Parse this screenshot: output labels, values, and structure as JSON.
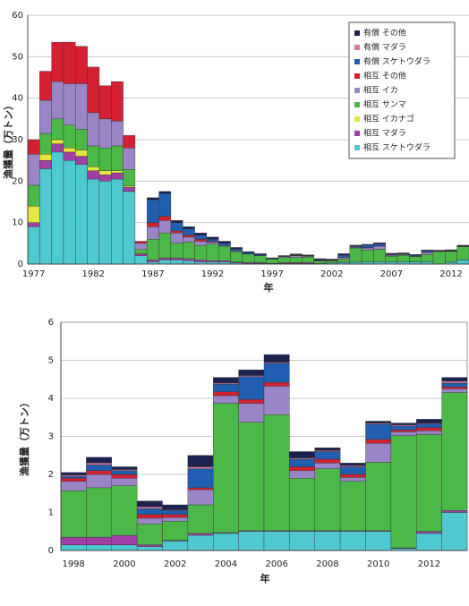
{
  "chart_data": [
    {
      "type": "stacked_bar",
      "y_label": "漁獲量（万トン）",
      "x_label": "年",
      "categories": [
        "1977",
        null,
        null,
        null,
        null,
        "1982",
        null,
        null,
        null,
        null,
        "1987",
        null,
        null,
        null,
        null,
        "1992",
        null,
        null,
        null,
        null,
        "1997",
        null,
        null,
        null,
        null,
        "2002",
        null,
        null,
        null,
        null,
        "2007",
        null,
        null,
        null,
        null,
        "2012",
        null
      ],
      "ylim": [
        0,
        60
      ],
      "yticks": [
        0,
        10,
        20,
        30,
        40,
        50,
        60
      ],
      "grid": true,
      "legend": "upper right",
      "series": [
        {
          "name": "相互 スケトウダラ",
          "color": "#4fc8d0",
          "values": [
            9,
            23,
            27,
            25,
            24,
            20.5,
            20,
            20.5,
            17.5,
            2,
            0.5,
            1,
            1,
            0.8,
            0.5,
            0.5,
            0.5,
            0.3,
            0.2,
            0.2,
            0.1,
            0.15,
            0.15,
            0.15,
            0.1,
            0.25,
            0.4,
            0.45,
            0.5,
            0.5,
            0.5,
            0.5,
            0.5,
            0.5,
            0.05,
            0.45,
            1.0
          ]
        },
        {
          "name": "相互 マダラ",
          "color": "#a23fa6",
          "values": [
            1,
            2,
            2,
            2,
            2,
            2,
            1.5,
            1.5,
            1,
            0.5,
            0.5,
            0.5,
            0.5,
            0.5,
            0.5,
            0.3,
            0.3,
            0.2,
            0.2,
            0.2,
            0.1,
            0.2,
            0.2,
            0.25,
            0.05,
            0.02,
            0.05,
            0.02,
            0.02,
            0.02,
            0.02,
            0.02,
            0.02,
            0.02,
            0.02,
            0.05,
            0.05
          ]
        },
        {
          "name": "相互 イカナゴ",
          "color": "#e6e63c",
          "values": [
            4,
            1.5,
            1,
            1,
            1.5,
            1,
            1,
            0.5,
            0.3,
            0,
            0,
            0,
            0,
            0,
            0,
            0,
            0,
            0,
            0,
            0,
            0,
            0,
            0,
            0,
            0,
            0,
            0,
            0,
            0,
            0,
            0,
            0,
            0,
            0,
            0,
            0,
            0
          ]
        },
        {
          "name": "相互 サンマ",
          "color": "#4cb848",
          "values": [
            5,
            5,
            5,
            5.5,
            5,
            5,
            5.5,
            6,
            4,
            1,
            5,
            6,
            3.5,
            4,
            3.5,
            4,
            3.5,
            2.5,
            2,
            1.6,
            1,
            1.22,
            1.3,
            1.3,
            0.55,
            0.5,
            0.75,
            3.4,
            2.85,
            3.05,
            1.38,
            1.63,
            1.3,
            1.8,
            2.95,
            2.55,
            3.1
          ]
        },
        {
          "name": "相互 イカ",
          "color": "#9a86c6",
          "values": [
            7.5,
            8,
            9,
            10,
            11,
            8,
            7,
            6,
            5.2,
            1.5,
            3,
            3,
            2.5,
            1.2,
            1,
            0.5,
            0.2,
            0.2,
            0,
            0,
            0,
            0.25,
            0.35,
            0.2,
            0.15,
            0.1,
            0.4,
            0.2,
            0.5,
            0.75,
            0.2,
            0.15,
            0.1,
            0.5,
            0.1,
            0.1,
            0.1
          ]
        },
        {
          "name": "相互 その他",
          "color": "#d42030",
          "values": [
            3.5,
            7,
            9.5,
            10,
            9,
            11,
            8,
            9.5,
            3,
            0.5,
            1,
            1,
            0.5,
            0.5,
            0.5,
            0.2,
            0,
            0,
            0,
            0,
            0,
            0.08,
            0.1,
            0.1,
            0.1,
            0.08,
            0.05,
            0.1,
            0.1,
            0.1,
            0.1,
            0.1,
            0.08,
            0.1,
            0.05,
            0.08,
            0.05
          ]
        },
        {
          "name": "有償 スケトウダラ",
          "color": "#1f5eb0",
          "values": [
            0,
            0,
            0,
            0,
            0,
            0,
            0,
            0,
            0,
            0,
            5.5,
            5.5,
            2,
            1.5,
            1,
            0.5,
            0.5,
            0.4,
            0.3,
            0.2,
            0.1,
            0.05,
            0.15,
            0.1,
            0.15,
            0.1,
            0.5,
            0.2,
            0.6,
            0.5,
            0.2,
            0.2,
            0.2,
            0.4,
            0.1,
            0.1,
            0.1
          ]
        },
        {
          "name": "有償 マダラ",
          "color": "#d87aa2",
          "values": [
            0,
            0,
            0,
            0,
            0,
            0,
            0,
            0,
            0,
            0,
            0,
            0,
            0,
            0,
            0,
            0,
            0,
            0,
            0,
            0,
            0,
            0.03,
            0.05,
            0.03,
            0.05,
            0.02,
            0.05,
            0.03,
            0.03,
            0.03,
            0.03,
            0.03,
            0.03,
            0.03,
            0.03,
            0.02,
            0.05
          ]
        },
        {
          "name": "有償 その他",
          "color": "#1c2250",
          "values": [
            0,
            0,
            0,
            0,
            0,
            0,
            0,
            0,
            0,
            0,
            0.5,
            0.5,
            0.5,
            0.5,
            0.5,
            0.5,
            0.5,
            0.4,
            0.3,
            0.3,
            0.2,
            0.07,
            0.15,
            0.07,
            0.15,
            0.13,
            0.3,
            0.15,
            0.15,
            0.2,
            0.17,
            0.07,
            0.07,
            0.05,
            0.05,
            0.1,
            0.1
          ]
        }
      ]
    },
    {
      "type": "stacked_bar",
      "y_label": "漁獲量（万トン）",
      "x_label": "年",
      "categories": [
        "1998",
        null,
        "2000",
        null,
        "2002",
        null,
        "2004",
        null,
        "2006",
        null,
        "2008",
        null,
        "2010",
        null,
        "2012",
        null
      ],
      "ylim": [
        0,
        6
      ],
      "yticks": [
        0,
        1,
        2,
        3,
        4,
        5,
        6
      ],
      "grid": true,
      "series": [
        {
          "color": "#4fc8d0",
          "values": [
            0.15,
            0.15,
            0.15,
            0.1,
            0.25,
            0.4,
            0.45,
            0.5,
            0.5,
            0.5,
            0.5,
            0.5,
            0.5,
            0.05,
            0.45,
            1.0
          ]
        },
        {
          "color": "#a23fa6",
          "values": [
            0.2,
            0.2,
            0.25,
            0.05,
            0.02,
            0.05,
            0.02,
            0.02,
            0.02,
            0.02,
            0.02,
            0.02,
            0.02,
            0.02,
            0.05,
            0.05
          ]
        },
        {
          "color": "#e6e63c",
          "values": [
            0,
            0,
            0,
            0,
            0,
            0,
            0,
            0,
            0,
            0,
            0,
            0,
            0,
            0,
            0,
            0
          ]
        },
        {
          "color": "#4cb848",
          "values": [
            1.22,
            1.3,
            1.3,
            0.55,
            0.5,
            0.75,
            3.4,
            2.85,
            3.05,
            1.38,
            1.63,
            1.3,
            1.8,
            2.95,
            2.55,
            3.1
          ]
        },
        {
          "color": "#9a86c6",
          "values": [
            0.25,
            0.35,
            0.2,
            0.15,
            0.1,
            0.4,
            0.2,
            0.5,
            0.75,
            0.2,
            0.15,
            0.1,
            0.5,
            0.1,
            0.1,
            0.1
          ]
        },
        {
          "color": "#d42030",
          "values": [
            0.08,
            0.1,
            0.1,
            0.1,
            0.08,
            0.05,
            0.1,
            0.1,
            0.1,
            0.1,
            0.1,
            0.08,
            0.1,
            0.05,
            0.08,
            0.05
          ]
        },
        {
          "color": "#1f5eb0",
          "values": [
            0.05,
            0.15,
            0.1,
            0.15,
            0.1,
            0.5,
            0.2,
            0.6,
            0.5,
            0.2,
            0.2,
            0.2,
            0.4,
            0.1,
            0.1,
            0.1
          ]
        },
        {
          "color": "#d87aa2",
          "values": [
            0.03,
            0.05,
            0.03,
            0.05,
            0.02,
            0.05,
            0.03,
            0.03,
            0.03,
            0.03,
            0.03,
            0.03,
            0.03,
            0.03,
            0.02,
            0.05
          ]
        },
        {
          "color": "#1c2250",
          "values": [
            0.07,
            0.15,
            0.07,
            0.15,
            0.13,
            0.3,
            0.15,
            0.15,
            0.2,
            0.17,
            0.07,
            0.07,
            0.05,
            0.05,
            0.1,
            0.1
          ]
        }
      ]
    }
  ]
}
